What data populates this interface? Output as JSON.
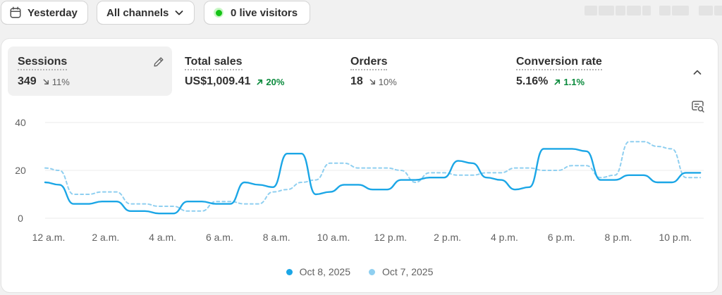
{
  "toolbar": {
    "date_label": "Yesterday",
    "channels_label": "All channels",
    "live_label": "0 live visitors"
  },
  "metrics": [
    {
      "title": "Sessions",
      "value": "349",
      "delta": "11%",
      "direction": "down"
    },
    {
      "title": "Total sales",
      "value": "US$1,009.41",
      "delta": "20%",
      "direction": "up"
    },
    {
      "title": "Orders",
      "value": "18",
      "delta": "10%",
      "direction": "down"
    },
    {
      "title": "Conversion rate",
      "value": "5.16%",
      "delta": "1.1%",
      "direction": "up"
    }
  ],
  "colors": {
    "primary_series": "#1ba6e6",
    "comparison_series": "#8fcff0",
    "positive": "#0a8a3c",
    "live": "#15c316"
  },
  "chart_data": {
    "type": "line",
    "title": "Sessions",
    "ylim": [
      0,
      40
    ],
    "yticks": [
      0,
      20,
      40
    ],
    "x": [
      0,
      0.5,
      1,
      1.5,
      2,
      2.5,
      3,
      3.5,
      4,
      4.5,
      5,
      5.5,
      6,
      6.5,
      7,
      7.5,
      8,
      8.5,
      9,
      9.5,
      10,
      10.5,
      11,
      11.5,
      12,
      12.5,
      13,
      13.5,
      14,
      14.5,
      15,
      15.5,
      16,
      16.5,
      17,
      17.5,
      18,
      18.5,
      19,
      19.5,
      20,
      20.5,
      21,
      21.5,
      22,
      22.5,
      23
    ],
    "xtick_positions": [
      0,
      2,
      4,
      6,
      8,
      10,
      12,
      14,
      16,
      18,
      20,
      22
    ],
    "xtick_labels": [
      "12 a.m.",
      "2 a.m.",
      "4 a.m.",
      "6 a.m.",
      "8 a.m.",
      "10 a.m.",
      "12 p.m.",
      "2 p.m.",
      "4 p.m.",
      "6 p.m.",
      "8 p.m.",
      "10 p.m."
    ],
    "series": [
      {
        "name": "Oct 8, 2025",
        "style": "solid",
        "values": [
          15,
          14,
          6,
          6,
          7,
          7,
          3,
          3,
          2,
          2,
          7,
          7,
          6,
          6,
          15,
          14,
          13,
          27,
          27,
          10,
          11,
          14,
          14,
          12,
          12,
          16,
          16,
          17,
          17,
          24,
          23,
          17,
          16,
          12,
          13,
          29,
          29,
          29,
          28,
          16,
          16,
          18,
          18,
          15,
          15,
          19,
          19
        ]
      },
      {
        "name": "Oct 7, 2025",
        "style": "dashed",
        "values": [
          21,
          20,
          10,
          10,
          11,
          11,
          6,
          6,
          5,
          5,
          3,
          3,
          7,
          7,
          6,
          6,
          11,
          12,
          15,
          16,
          23,
          23,
          21,
          21,
          21,
          20,
          15,
          19,
          19,
          18,
          18,
          19,
          19,
          21,
          21,
          20,
          20,
          22,
          22,
          17,
          18,
          32,
          32,
          30,
          29,
          17,
          17
        ]
      }
    ]
  }
}
